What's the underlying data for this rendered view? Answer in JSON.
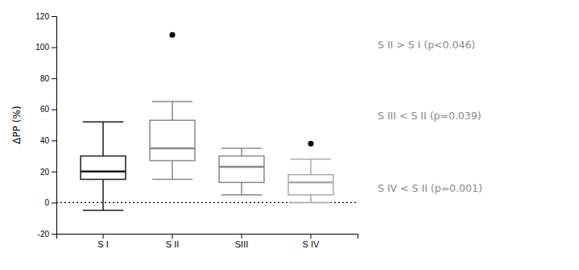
{
  "chart_data": {
    "type": "box",
    "ylabel": "ΔPP (%)",
    "categories": [
      "S I",
      "S II",
      "SIII",
      "S IV"
    ],
    "boxes": [
      {
        "q1": 15,
        "median": 20,
        "q3": 30,
        "whislo": -5,
        "whishi": 52,
        "fliers": [],
        "color": "#1a1a1a"
      },
      {
        "q1": 27,
        "median": 35,
        "q3": 53,
        "whislo": 15,
        "whishi": 65,
        "fliers": [
          108
        ],
        "color": "#888888"
      },
      {
        "q1": 13,
        "median": 23,
        "q3": 30,
        "whislo": 5,
        "whishi": 35,
        "fliers": [],
        "color": "#888888"
      },
      {
        "q1": 5,
        "median": 13,
        "q3": 18,
        "whislo": 0,
        "whishi": 28,
        "fliers": [
          38
        ],
        "color": "#aaaaaa"
      }
    ],
    "ylim": [
      -20,
      120
    ],
    "yticks": [
      -20,
      0,
      20,
      40,
      60,
      80,
      100,
      120
    ],
    "reference_line": {
      "value": 0,
      "line_style": "dotted",
      "color": "#000000"
    },
    "annotations": [
      {
        "text": "S II > S I (p<0.046)",
        "color": "#888888"
      },
      {
        "text": "S III < S II (p=0.039)",
        "color": "#888888"
      },
      {
        "text": "S IV < S II (p=0.001)",
        "color": "#888888"
      }
    ]
  }
}
